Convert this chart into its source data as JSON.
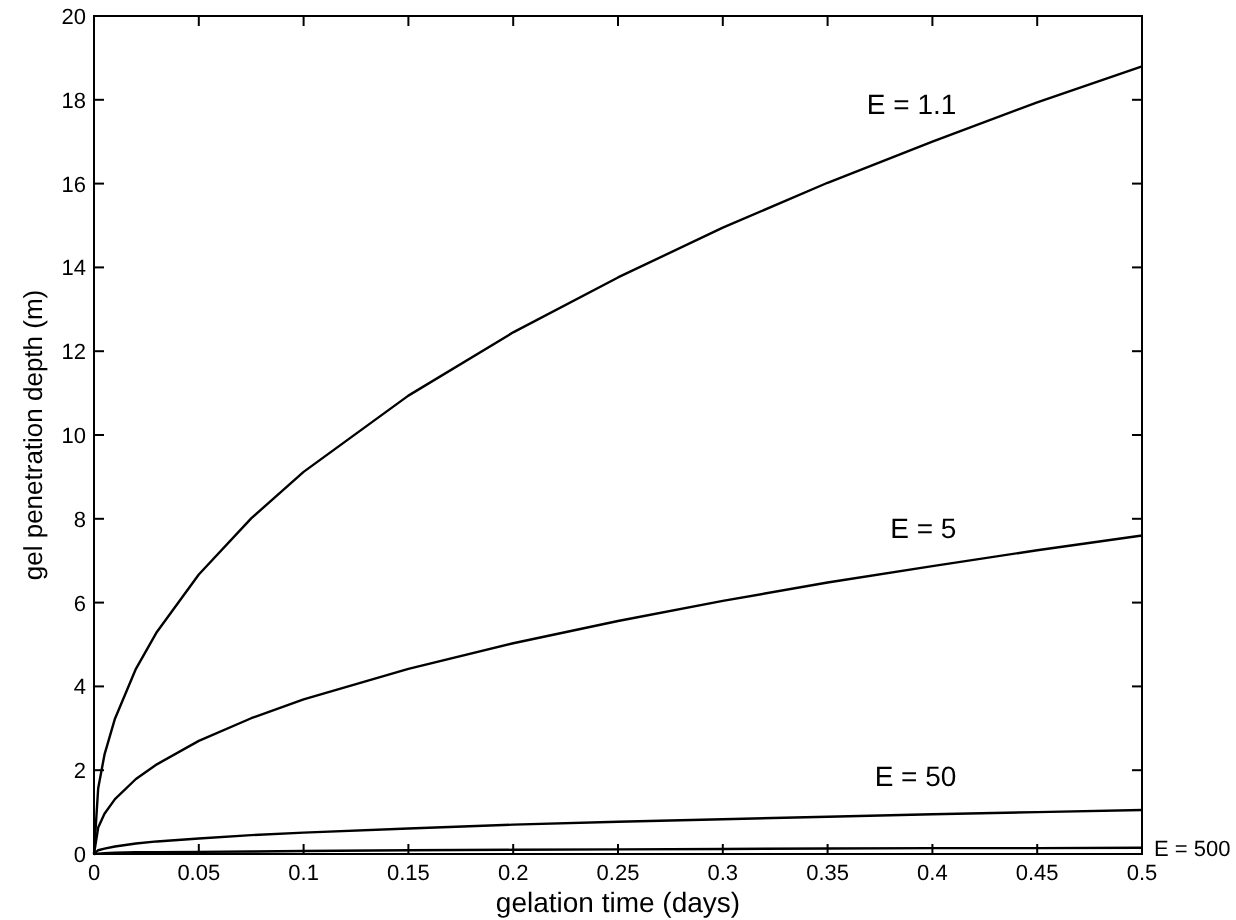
{
  "chart_data": {
    "type": "line",
    "xlabel": "gelation time (days)",
    "ylabel": "gel penetration depth (m)",
    "x": [
      0,
      0.002,
      0.005,
      0.01,
      0.02,
      0.03,
      0.05,
      0.075,
      0.1,
      0.15,
      0.2,
      0.25,
      0.3,
      0.35,
      0.4,
      0.45,
      0.5
    ],
    "series": [
      {
        "name": "E = 1.1",
        "color": "#000000",
        "values": [
          0,
          1.57,
          2.37,
          3.23,
          4.42,
          5.3,
          6.67,
          8.01,
          9.12,
          10.94,
          12.45,
          13.76,
          14.95,
          16.02,
          17.0,
          17.94,
          18.8
        ]
      },
      {
        "name": "E = 5",
        "color": "#000000",
        "values": [
          0,
          0.63,
          0.96,
          1.31,
          1.79,
          2.14,
          2.7,
          3.24,
          3.69,
          4.42,
          5.03,
          5.56,
          6.04,
          6.48,
          6.87,
          7.25,
          7.6
        ]
      },
      {
        "name": "E = 50",
        "color": "#000000",
        "values": [
          0,
          0.09,
          0.13,
          0.18,
          0.25,
          0.3,
          0.37,
          0.45,
          0.51,
          0.61,
          0.7,
          0.77,
          0.83,
          0.89,
          0.95,
          1.0,
          1.05
        ]
      },
      {
        "name": "E = 500",
        "color": "#000000",
        "values": [
          0,
          0.01,
          0.02,
          0.03,
          0.04,
          0.04,
          0.05,
          0.06,
          0.07,
          0.09,
          0.1,
          0.11,
          0.12,
          0.13,
          0.14,
          0.14,
          0.15
        ]
      }
    ],
    "xlim": [
      0,
      0.5
    ],
    "xticks": [
      0,
      0.05,
      0.1,
      0.15,
      0.2,
      0.25,
      0.3,
      0.35,
      0.4,
      0.45,
      0.5
    ],
    "ylim": [
      0,
      20
    ],
    "yticks": [
      0,
      2,
      4,
      6,
      8,
      10,
      12,
      14,
      16,
      18,
      20
    ],
    "grid": false,
    "marker": "none",
    "line_style": "solid"
  }
}
